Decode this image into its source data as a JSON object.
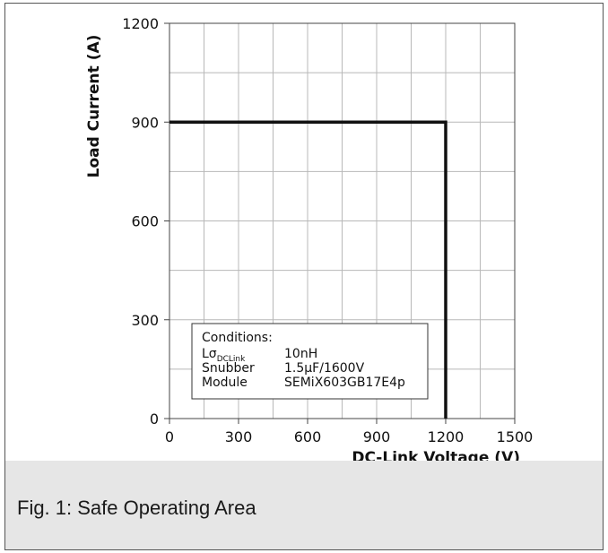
{
  "chart_data": {
    "type": "line",
    "xlabel": "DC-Link Voltage (V)",
    "ylabel": "Load Current (A)",
    "xlim": [
      0,
      1500
    ],
    "ylim": [
      0,
      1200
    ],
    "xticks": [
      0,
      300,
      600,
      900,
      1200,
      1500
    ],
    "yticks": [
      0,
      300,
      600,
      900,
      1200
    ],
    "grid": true,
    "series": [
      {
        "x": [
          0,
          1200,
          1200
        ],
        "y": [
          900,
          900,
          0
        ]
      }
    ],
    "conditions": {
      "title": "Conditions:",
      "rows": [
        {
          "label": "Lσ",
          "label_sub": "DCLink",
          "value": "10nH"
        },
        {
          "label": "Snubber",
          "label_sub": "",
          "value": "1.5µF/1600V"
        },
        {
          "label": "Module",
          "label_sub": "",
          "value": "SEMiX603GB17E4p"
        }
      ]
    }
  },
  "caption": "Fig. 1: Safe Operating Area"
}
